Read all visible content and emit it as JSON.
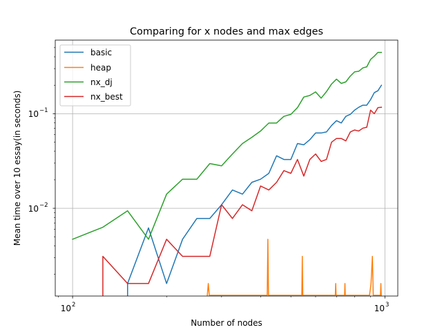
{
  "chart_data": {
    "type": "line",
    "title": "Comparing for x nodes and max edges",
    "xlabel": "Number of nodes",
    "ylabel": "Mean time over 10 essay(in seconds)",
    "xscale": "log",
    "yscale": "log",
    "xlim": [
      88,
      1100
    ],
    "ylim": [
      0.00118,
      0.6
    ],
    "grid": true,
    "legend_position": "upper left",
    "x_ticks": [
      {
        "value": 100,
        "base": "10",
        "exp": "2"
      },
      {
        "value": 1000,
        "base": "10",
        "exp": "3"
      }
    ],
    "y_ticks": [
      {
        "value": 0.01,
        "base": "10",
        "exp": "−2"
      },
      {
        "value": 0.1,
        "base": "10",
        "exp": "−1"
      }
    ],
    "series": [
      {
        "name": "basic",
        "color": "#1f77b4",
        "points": [
          [
            150,
            0.0012
          ],
          [
            150,
            0.0016
          ],
          [
            175,
            0.0062
          ],
          [
            200,
            0.0016
          ],
          [
            225,
            0.0047
          ],
          [
            250,
            0.0078
          ],
          [
            275,
            0.0078
          ],
          [
            300,
            0.0109
          ],
          [
            325,
            0.0156
          ],
          [
            350,
            0.0141
          ],
          [
            375,
            0.0188
          ],
          [
            400,
            0.0203
          ],
          [
            425,
            0.0234
          ],
          [
            450,
            0.0359
          ],
          [
            475,
            0.0328
          ],
          [
            500,
            0.0328
          ],
          [
            525,
            0.0484
          ],
          [
            550,
            0.0469
          ],
          [
            575,
            0.0531
          ],
          [
            600,
            0.0625
          ],
          [
            625,
            0.0625
          ],
          [
            650,
            0.0641
          ],
          [
            675,
            0.075
          ],
          [
            700,
            0.0844
          ],
          [
            725,
            0.0797
          ],
          [
            750,
            0.0938
          ],
          [
            775,
            0.0984
          ],
          [
            800,
            0.109
          ],
          [
            825,
            0.117
          ],
          [
            850,
            0.123
          ],
          [
            875,
            0.123
          ],
          [
            900,
            0.141
          ],
          [
            925,
            0.167
          ],
          [
            950,
            0.175
          ],
          [
            975,
            0.2
          ]
        ]
      },
      {
        "name": "heap",
        "color": "#ff7f0e",
        "points": [
          [
            270,
            0.0012
          ],
          [
            272,
            0.0016
          ],
          [
            274,
            0.0012
          ],
          [
            420,
            0.0012
          ],
          [
            422,
            0.0047
          ],
          [
            424,
            0.0012
          ],
          [
            542,
            0.0012
          ],
          [
            544,
            0.0031
          ],
          [
            546,
            0.0012
          ],
          [
            694,
            0.0012
          ],
          [
            696,
            0.0016
          ],
          [
            698,
            0.0012
          ],
          [
            743,
            0.0012
          ],
          [
            745,
            0.0016
          ],
          [
            747,
            0.0012
          ],
          [
            893,
            0.0012
          ],
          [
            903,
            0.0016
          ],
          [
            912,
            0.0031
          ],
          [
            918,
            0.0012
          ],
          [
            968,
            0.0012
          ],
          [
            971,
            0.0016
          ],
          [
            974,
            0.0012
          ]
        ]
      },
      {
        "name": "nx_dj",
        "color": "#2ca02c",
        "points": [
          [
            100,
            0.0047
          ],
          [
            125,
            0.0063
          ],
          [
            150,
            0.0094
          ],
          [
            175,
            0.0047
          ],
          [
            200,
            0.0141
          ],
          [
            225,
            0.0203
          ],
          [
            250,
            0.0203
          ],
          [
            275,
            0.0297
          ],
          [
            300,
            0.0281
          ],
          [
            325,
            0.0375
          ],
          [
            350,
            0.0484
          ],
          [
            375,
            0.0563
          ],
          [
            400,
            0.0656
          ],
          [
            425,
            0.0797
          ],
          [
            450,
            0.0797
          ],
          [
            475,
            0.0938
          ],
          [
            500,
            0.0984
          ],
          [
            525,
            0.116
          ],
          [
            550,
            0.15
          ],
          [
            575,
            0.156
          ],
          [
            600,
            0.17
          ],
          [
            625,
            0.146
          ],
          [
            650,
            0.171
          ],
          [
            675,
            0.206
          ],
          [
            700,
            0.232
          ],
          [
            725,
            0.209
          ],
          [
            750,
            0.217
          ],
          [
            775,
            0.25
          ],
          [
            800,
            0.277
          ],
          [
            825,
            0.281
          ],
          [
            850,
            0.305
          ],
          [
            875,
            0.313
          ],
          [
            900,
            0.375
          ],
          [
            925,
            0.406
          ],
          [
            950,
            0.445
          ],
          [
            975,
            0.445
          ]
        ]
      },
      {
        "name": "nx_best",
        "color": "#d62728",
        "points": [
          [
            125,
            0.0012
          ],
          [
            125,
            0.0031
          ],
          [
            150,
            0.0016
          ],
          [
            175,
            0.0016
          ],
          [
            200,
            0.0047
          ],
          [
            225,
            0.0031
          ],
          [
            250,
            0.0031
          ],
          [
            275,
            0.0031
          ],
          [
            300,
            0.0109
          ],
          [
            325,
            0.0078
          ],
          [
            350,
            0.0109
          ],
          [
            375,
            0.0094
          ],
          [
            400,
            0.0172
          ],
          [
            425,
            0.0156
          ],
          [
            450,
            0.0188
          ],
          [
            475,
            0.025
          ],
          [
            500,
            0.0234
          ],
          [
            525,
            0.0328
          ],
          [
            550,
            0.0219
          ],
          [
            575,
            0.0328
          ],
          [
            600,
            0.0375
          ],
          [
            625,
            0.0313
          ],
          [
            650,
            0.0328
          ],
          [
            675,
            0.05
          ],
          [
            700,
            0.0547
          ],
          [
            725,
            0.0547
          ],
          [
            750,
            0.0516
          ],
          [
            775,
            0.0641
          ],
          [
            800,
            0.0672
          ],
          [
            825,
            0.0656
          ],
          [
            850,
            0.0703
          ],
          [
            875,
            0.0719
          ],
          [
            900,
            0.109
          ],
          [
            925,
            0.1
          ],
          [
            950,
            0.116
          ],
          [
            975,
            0.117
          ]
        ]
      }
    ]
  }
}
